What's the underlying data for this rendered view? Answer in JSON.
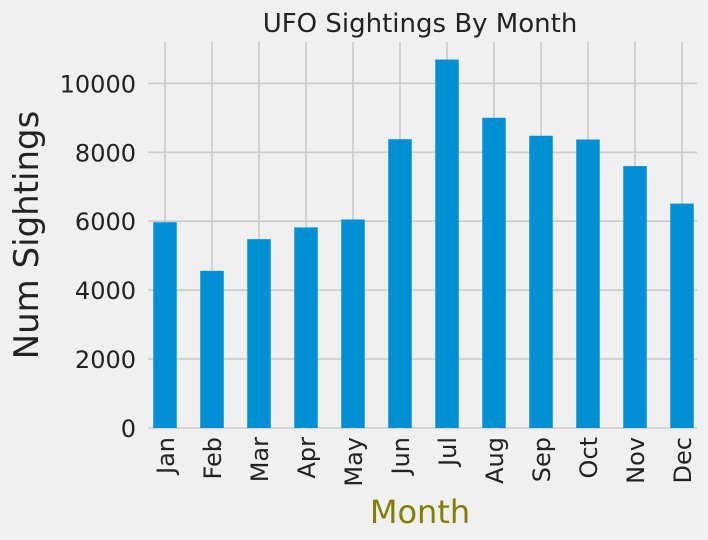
{
  "chart_data": {
    "type": "bar",
    "title": "UFO Sightings By Month",
    "xlabel": "Month",
    "ylabel": "Num Sightings",
    "categories": [
      "Jan",
      "Feb",
      "Mar",
      "Apr",
      "May",
      "Jun",
      "Jul",
      "Aug",
      "Sep",
      "Oct",
      "Nov",
      "Dec"
    ],
    "values": [
      5970,
      4560,
      5480,
      5820,
      6050,
      8380,
      10690,
      9000,
      8480,
      8370,
      7600,
      6510
    ],
    "ylim": [
      0,
      11200
    ],
    "yticks": [
      0,
      2000,
      4000,
      6000,
      8000,
      10000
    ],
    "grid": true,
    "bar_color": "#008fd5",
    "xlabel_color": "#808000",
    "background_color": "#f0f0f0"
  }
}
